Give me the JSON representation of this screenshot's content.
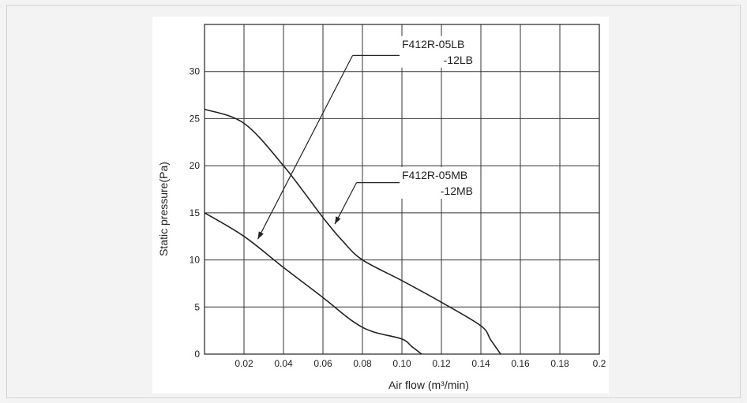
{
  "chart_data": {
    "type": "line",
    "title": "",
    "xlabel": "Air flow (m³/min)",
    "ylabel": "Static pressure(Pa)",
    "xlim": [
      0,
      0.2
    ],
    "ylim": [
      0,
      35
    ],
    "x_ticks": [
      0.02,
      0.04,
      0.06,
      0.08,
      0.1,
      0.12,
      0.14,
      0.16,
      0.18,
      0.2
    ],
    "x_tick_labels": [
      "0.02",
      "0.04",
      "0.06",
      "0.08",
      "0.10",
      "0.12",
      "0.14",
      "0.16",
      "0.18",
      "0.2"
    ],
    "y_ticks": [
      0,
      5,
      10,
      15,
      20,
      25,
      30
    ],
    "y_tick_labels": [
      "0",
      "5",
      "10",
      "15",
      "20",
      "25",
      "30"
    ],
    "grid": true,
    "series": [
      {
        "x": [
          0,
          0.02,
          0.04,
          0.06,
          0.075,
          0.085,
          0.1,
          0.105,
          0.11
        ],
        "y": [
          15,
          12.5,
          9.2,
          6,
          3.5,
          2.4,
          1.6,
          0.8,
          0
        ]
      },
      {
        "x": [
          0,
          0.02,
          0.04,
          0.06,
          0.07,
          0.08,
          0.1,
          0.12,
          0.14,
          0.145,
          0.15
        ],
        "y": [
          26,
          24.5,
          20,
          14.5,
          12,
          10,
          7.8,
          5.5,
          3,
          1.5,
          0
        ]
      }
    ],
    "annotations": [
      {
        "lines": [
          "F412R-05LB",
          "-12LB"
        ],
        "arrow_to": [
          0.027,
          12.2
        ]
      },
      {
        "lines": [
          "F412R-05MB",
          "-12MB"
        ],
        "arrow_to": [
          0.066,
          13.8
        ]
      }
    ]
  }
}
